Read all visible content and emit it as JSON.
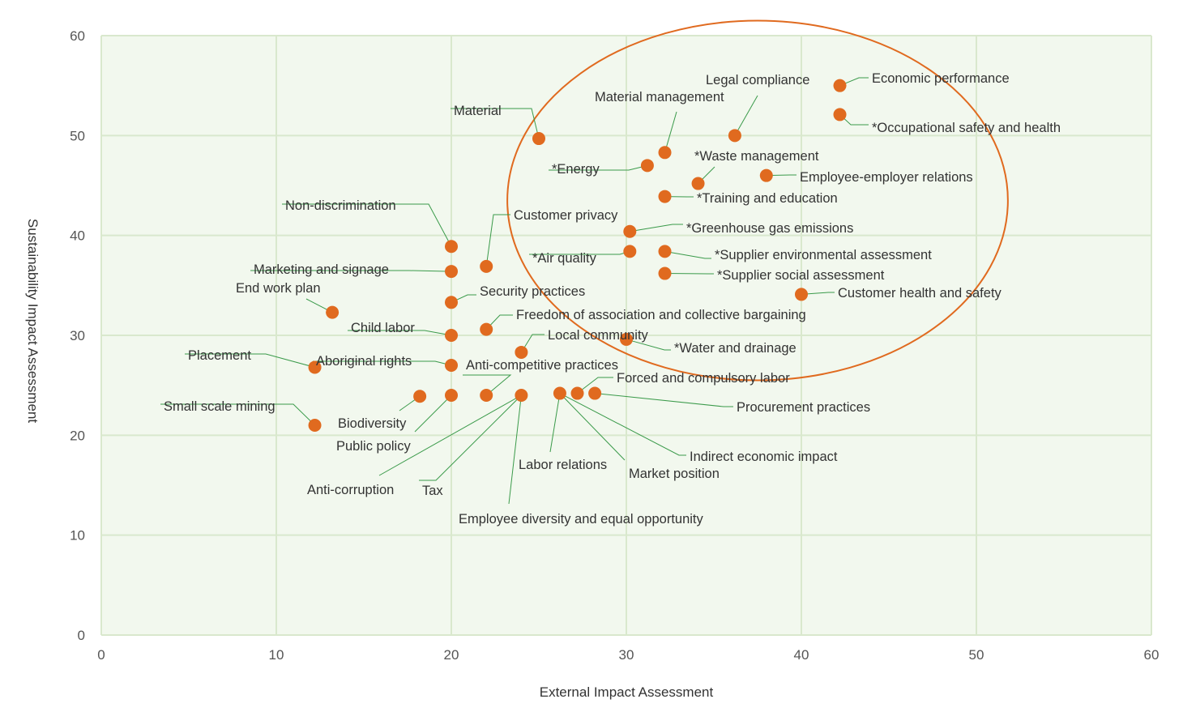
{
  "chart_data": {
    "type": "scatter",
    "title": "",
    "xlabel": "External Impact Assessment",
    "ylabel": "Sustainability Impact Assessment",
    "xlim": [
      0,
      60
    ],
    "ylim": [
      0,
      60
    ],
    "x_ticks": [
      "0",
      "10",
      "20",
      "30",
      "40",
      "50",
      "60"
    ],
    "y_ticks": [
      "0",
      "10",
      "20",
      "30",
      "40",
      "50",
      "60"
    ],
    "grid": true,
    "colors": {
      "plot_bg": "#f2f8ee",
      "grid": "#d9e8cd",
      "marker": "#e06a1f",
      "leader": "#3a9a4a",
      "ellipse": "#e06a1f"
    },
    "highlight_ellipse": {
      "cx": 37.5,
      "cy": 43.5,
      "rx": 14.3,
      "ry": 18
    },
    "points": [
      {
        "label": "Economic performance",
        "x": 42.2,
        "y": 55.0
      },
      {
        "label": "*Occupational safety and health",
        "x": 42.2,
        "y": 52.1
      },
      {
        "label": "Legal compliance",
        "x": 36.2,
        "y": 50.0
      },
      {
        "label": "Material management",
        "x": 32.2,
        "y": 48.3
      },
      {
        "label": "Material",
        "x": 25.0,
        "y": 49.7
      },
      {
        "label": "*Energy",
        "x": 31.2,
        "y": 47.0
      },
      {
        "label": "*Waste management",
        "x": 34.1,
        "y": 45.2
      },
      {
        "label": "Employee-employer relations",
        "x": 38.0,
        "y": 46.0
      },
      {
        "label": "*Training and education",
        "x": 32.2,
        "y": 43.9
      },
      {
        "label": "*Greenhouse gas emissions",
        "x": 30.2,
        "y": 40.4
      },
      {
        "label": "*Air quality",
        "x": 30.2,
        "y": 38.4
      },
      {
        "label": "*Supplier environmental assessment",
        "x": 32.2,
        "y": 38.4
      },
      {
        "label": "*Supplier social assessment",
        "x": 32.2,
        "y": 36.2
      },
      {
        "label": "Customer health and safety",
        "x": 40.0,
        "y": 34.1
      },
      {
        "label": "Non-discrimination",
        "x": 20.0,
        "y": 38.9
      },
      {
        "label": "Customer privacy",
        "x": 22.0,
        "y": 36.9
      },
      {
        "label": "Marketing and signage",
        "x": 20.0,
        "y": 36.4
      },
      {
        "label": "End work plan",
        "x": 13.2,
        "y": 32.3
      },
      {
        "label": "Security practices",
        "x": 20.0,
        "y": 33.3
      },
      {
        "label": "Freedom of association and collective bargaining",
        "x": 22.0,
        "y": 30.6
      },
      {
        "label": "Child labor",
        "x": 20.0,
        "y": 30.0
      },
      {
        "label": "Local community",
        "x": 24.0,
        "y": 28.3
      },
      {
        "label": "*Water and drainage",
        "x": 30.0,
        "y": 29.6
      },
      {
        "label": "Placement",
        "x": 12.2,
        "y": 26.8
      },
      {
        "label": "Aboriginal rights",
        "x": 20.0,
        "y": 27.0
      },
      {
        "label": "Anti-competitive practices",
        "x": 22.0,
        "y": 24.0
      },
      {
        "label": "Forced and compulsory labor",
        "x": 27.2,
        "y": 24.2
      },
      {
        "label": "Procurement practices",
        "x": 28.2,
        "y": 24.2
      },
      {
        "label": "Small scale mining",
        "x": 12.2,
        "y": 21.0
      },
      {
        "label": "Biodiversity",
        "x": 18.2,
        "y": 23.9
      },
      {
        "label": "Public policy",
        "x": 20.0,
        "y": 24.0
      },
      {
        "label": "Anti-corruption",
        "x": 24.0,
        "y": 24.0
      },
      {
        "label": "Tax",
        "x": 24.0,
        "y": 24.0
      },
      {
        "label": "Employee diversity and equal opportunity",
        "x": 24.0,
        "y": 24.0
      },
      {
        "label": "Labor relations",
        "x": 26.2,
        "y": 24.2
      },
      {
        "label": "Market position",
        "x": 26.2,
        "y": 24.2
      },
      {
        "label": "Indirect economic impact",
        "x": 26.2,
        "y": 24.2
      }
    ]
  }
}
